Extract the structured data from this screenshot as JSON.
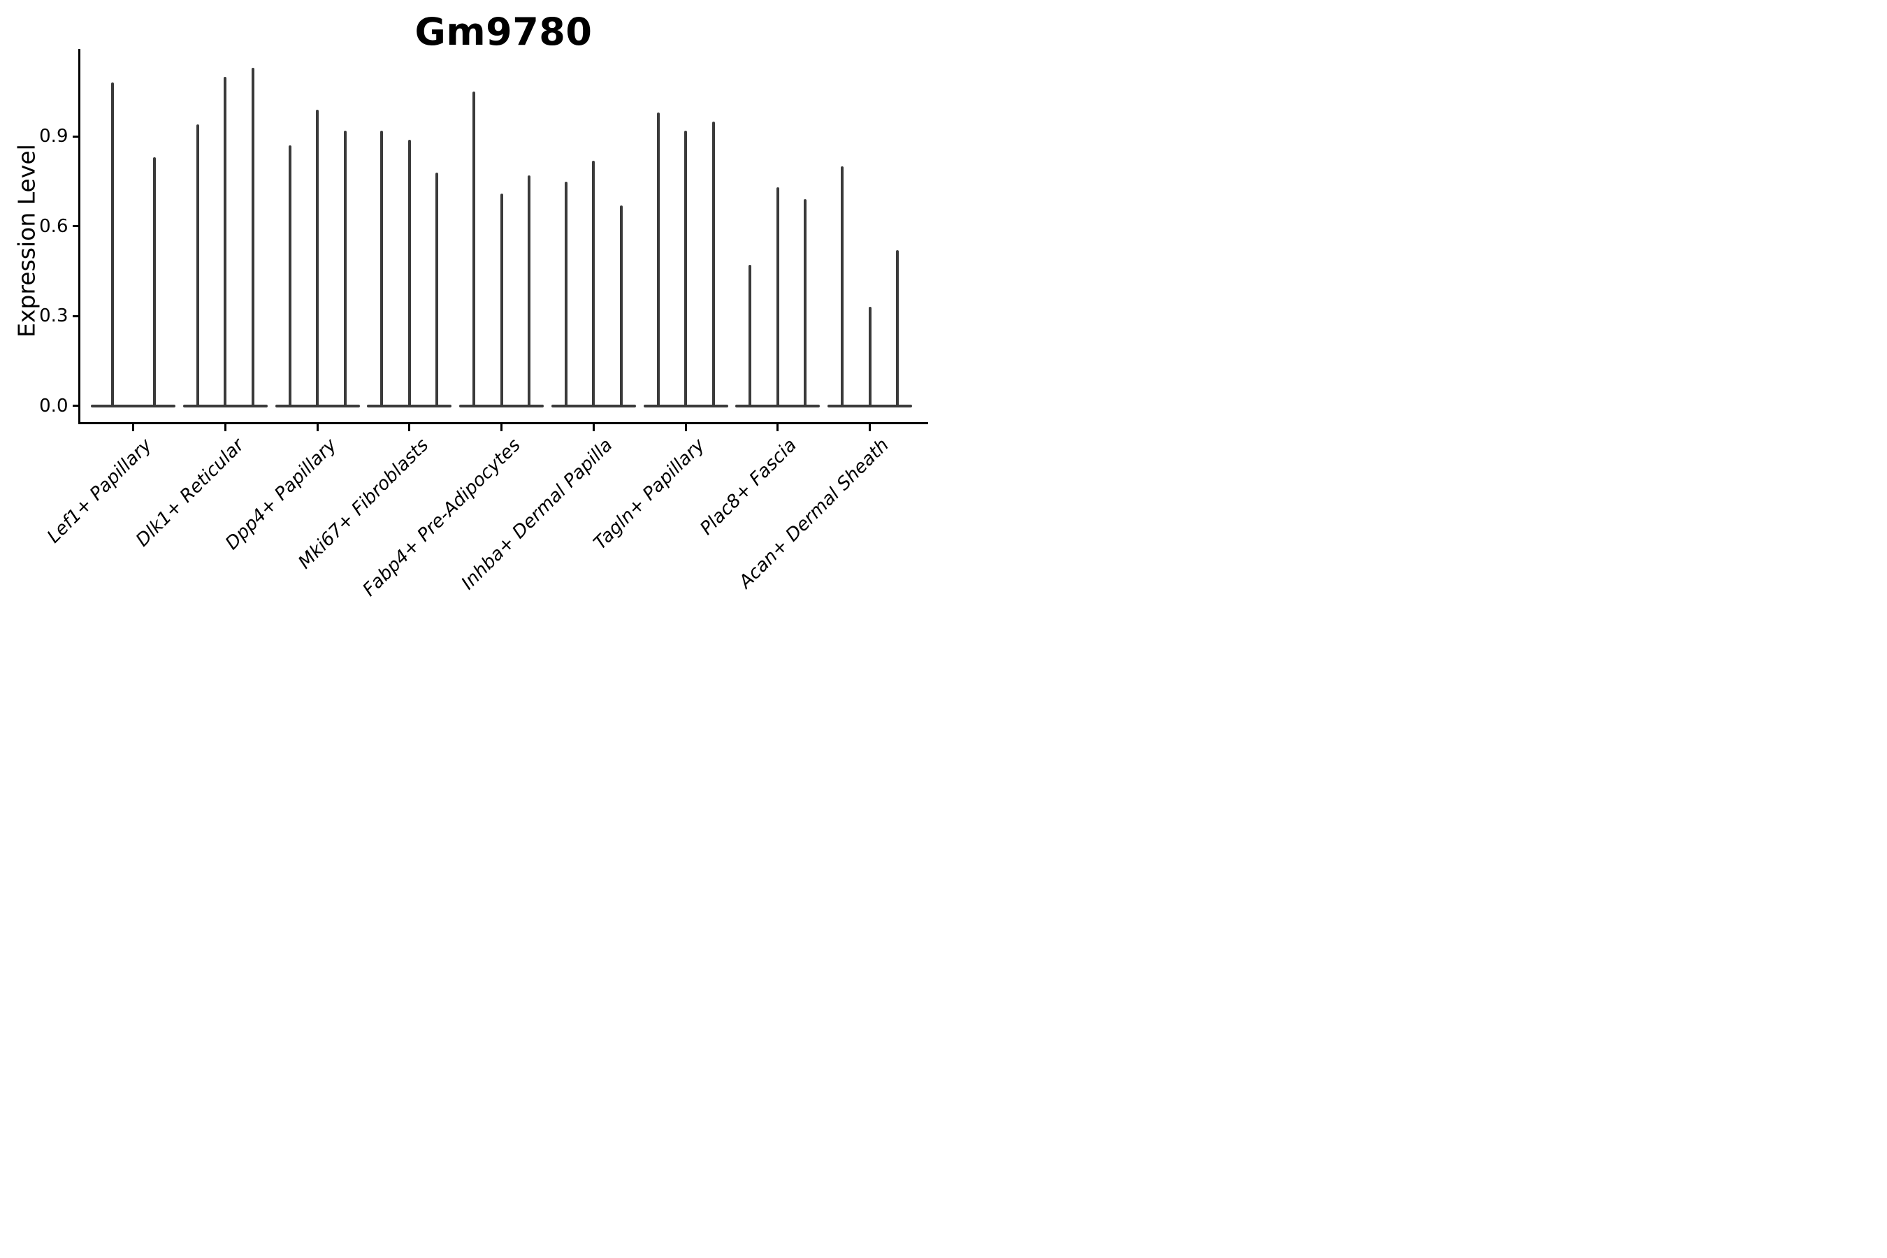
{
  "title": "Gm9780",
  "axes": {
    "ylabel": "Expression Level",
    "ytick_labels": [
      "0.0",
      "0.3",
      "0.6",
      "0.9"
    ]
  },
  "colors": {
    "violin": "#3a3a3a",
    "axis": "#000000",
    "text": "#000000",
    "background": "#ffffff"
  },
  "chart_data": {
    "type": "violin",
    "title": "Gm9780",
    "xlabel": "",
    "ylabel": "Expression Level",
    "ylim": [
      -0.06,
      1.19
    ],
    "ytick_values": [
      0.0,
      0.3,
      0.6,
      0.9
    ],
    "ytick_labels": [
      "0.0",
      "0.3",
      "0.6",
      "0.9"
    ],
    "grid": false,
    "legend": "none",
    "xtick_rotation": 45,
    "style_note": "needle violins: nearly all density flat at 0 with one thin spike per violin rising to its maximum expression value",
    "categories": [
      "Lef1+ Papillary",
      "Dlk1+ Reticular",
      "Dpp4+ Papillary",
      "Mki67+ Fibroblasts",
      "Fabp4+ Pre-Adipocytes",
      "Inhba+ Dermal Papilla",
      "Tagln+ Papillary",
      "Plac8+ Fascia",
      "Acan+ Dermal Sheath"
    ],
    "groups": [
      {
        "label": "Lef1+ Papillary",
        "spike_maxima": [
          1.08,
          0.83
        ]
      },
      {
        "label": "Dlk1+ Reticular",
        "spike_maxima": [
          0.94,
          1.1,
          1.13
        ]
      },
      {
        "label": "Dpp4+ Papillary",
        "spike_maxima": [
          0.87,
          0.99,
          0.92
        ]
      },
      {
        "label": "Mki67+ Fibroblasts",
        "spike_maxima": [
          0.92,
          0.89,
          0.78
        ]
      },
      {
        "label": "Fabp4+ Pre-Adipocytes",
        "spike_maxima": [
          1.05,
          0.71,
          0.77
        ]
      },
      {
        "label": "Inhba+ Dermal Papilla",
        "spike_maxima": [
          0.75,
          0.82,
          0.67
        ]
      },
      {
        "label": "Tagln+ Papillary",
        "spike_maxima": [
          0.98,
          0.92,
          0.95
        ]
      },
      {
        "label": "Plac8+ Fascia",
        "spike_maxima": [
          0.47,
          0.73,
          0.69
        ]
      },
      {
        "label": "Acan+ Dermal Sheath",
        "spike_maxima": [
          0.8,
          0.33,
          0.52
        ]
      }
    ]
  }
}
